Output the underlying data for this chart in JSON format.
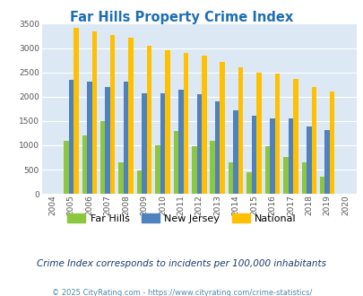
{
  "title": "Far Hills Property Crime Index",
  "years": [
    2004,
    2005,
    2006,
    2007,
    2008,
    2009,
    2010,
    2011,
    2012,
    2013,
    2014,
    2015,
    2016,
    2017,
    2018,
    2019,
    2020
  ],
  "far_hills": [
    0,
    1100,
    1200,
    1500,
    650,
    475,
    1000,
    1300,
    975,
    1100,
    650,
    450,
    975,
    750,
    650,
    350,
    0
  ],
  "new_jersey": [
    0,
    2350,
    2300,
    2200,
    2300,
    2075,
    2075,
    2150,
    2050,
    1900,
    1720,
    1600,
    1550,
    1550,
    1390,
    1310,
    0
  ],
  "national": [
    0,
    3420,
    3340,
    3270,
    3210,
    3040,
    2950,
    2900,
    2850,
    2720,
    2600,
    2490,
    2470,
    2370,
    2200,
    2110,
    0
  ],
  "far_hills_color": "#8dc63f",
  "new_jersey_color": "#4f81bd",
  "national_color": "#ffc000",
  "title_color": "#1e6eb5",
  "plot_bg_color": "#dce9f5",
  "outer_bg_color": "#ffffff",
  "subtitle": "Crime Index corresponds to incidents per 100,000 inhabitants",
  "footer": "© 2025 CityRating.com - https://www.cityrating.com/crime-statistics/",
  "ylim": [
    0,
    3500
  ],
  "yticks": [
    0,
    500,
    1000,
    1500,
    2000,
    2500,
    3000,
    3500
  ],
  "bar_width": 0.27,
  "legend_labels": [
    "Far Hills",
    "New Jersey",
    "National"
  ],
  "subtitle_color": "#1a3a6b",
  "footer_color": "#5588aa"
}
